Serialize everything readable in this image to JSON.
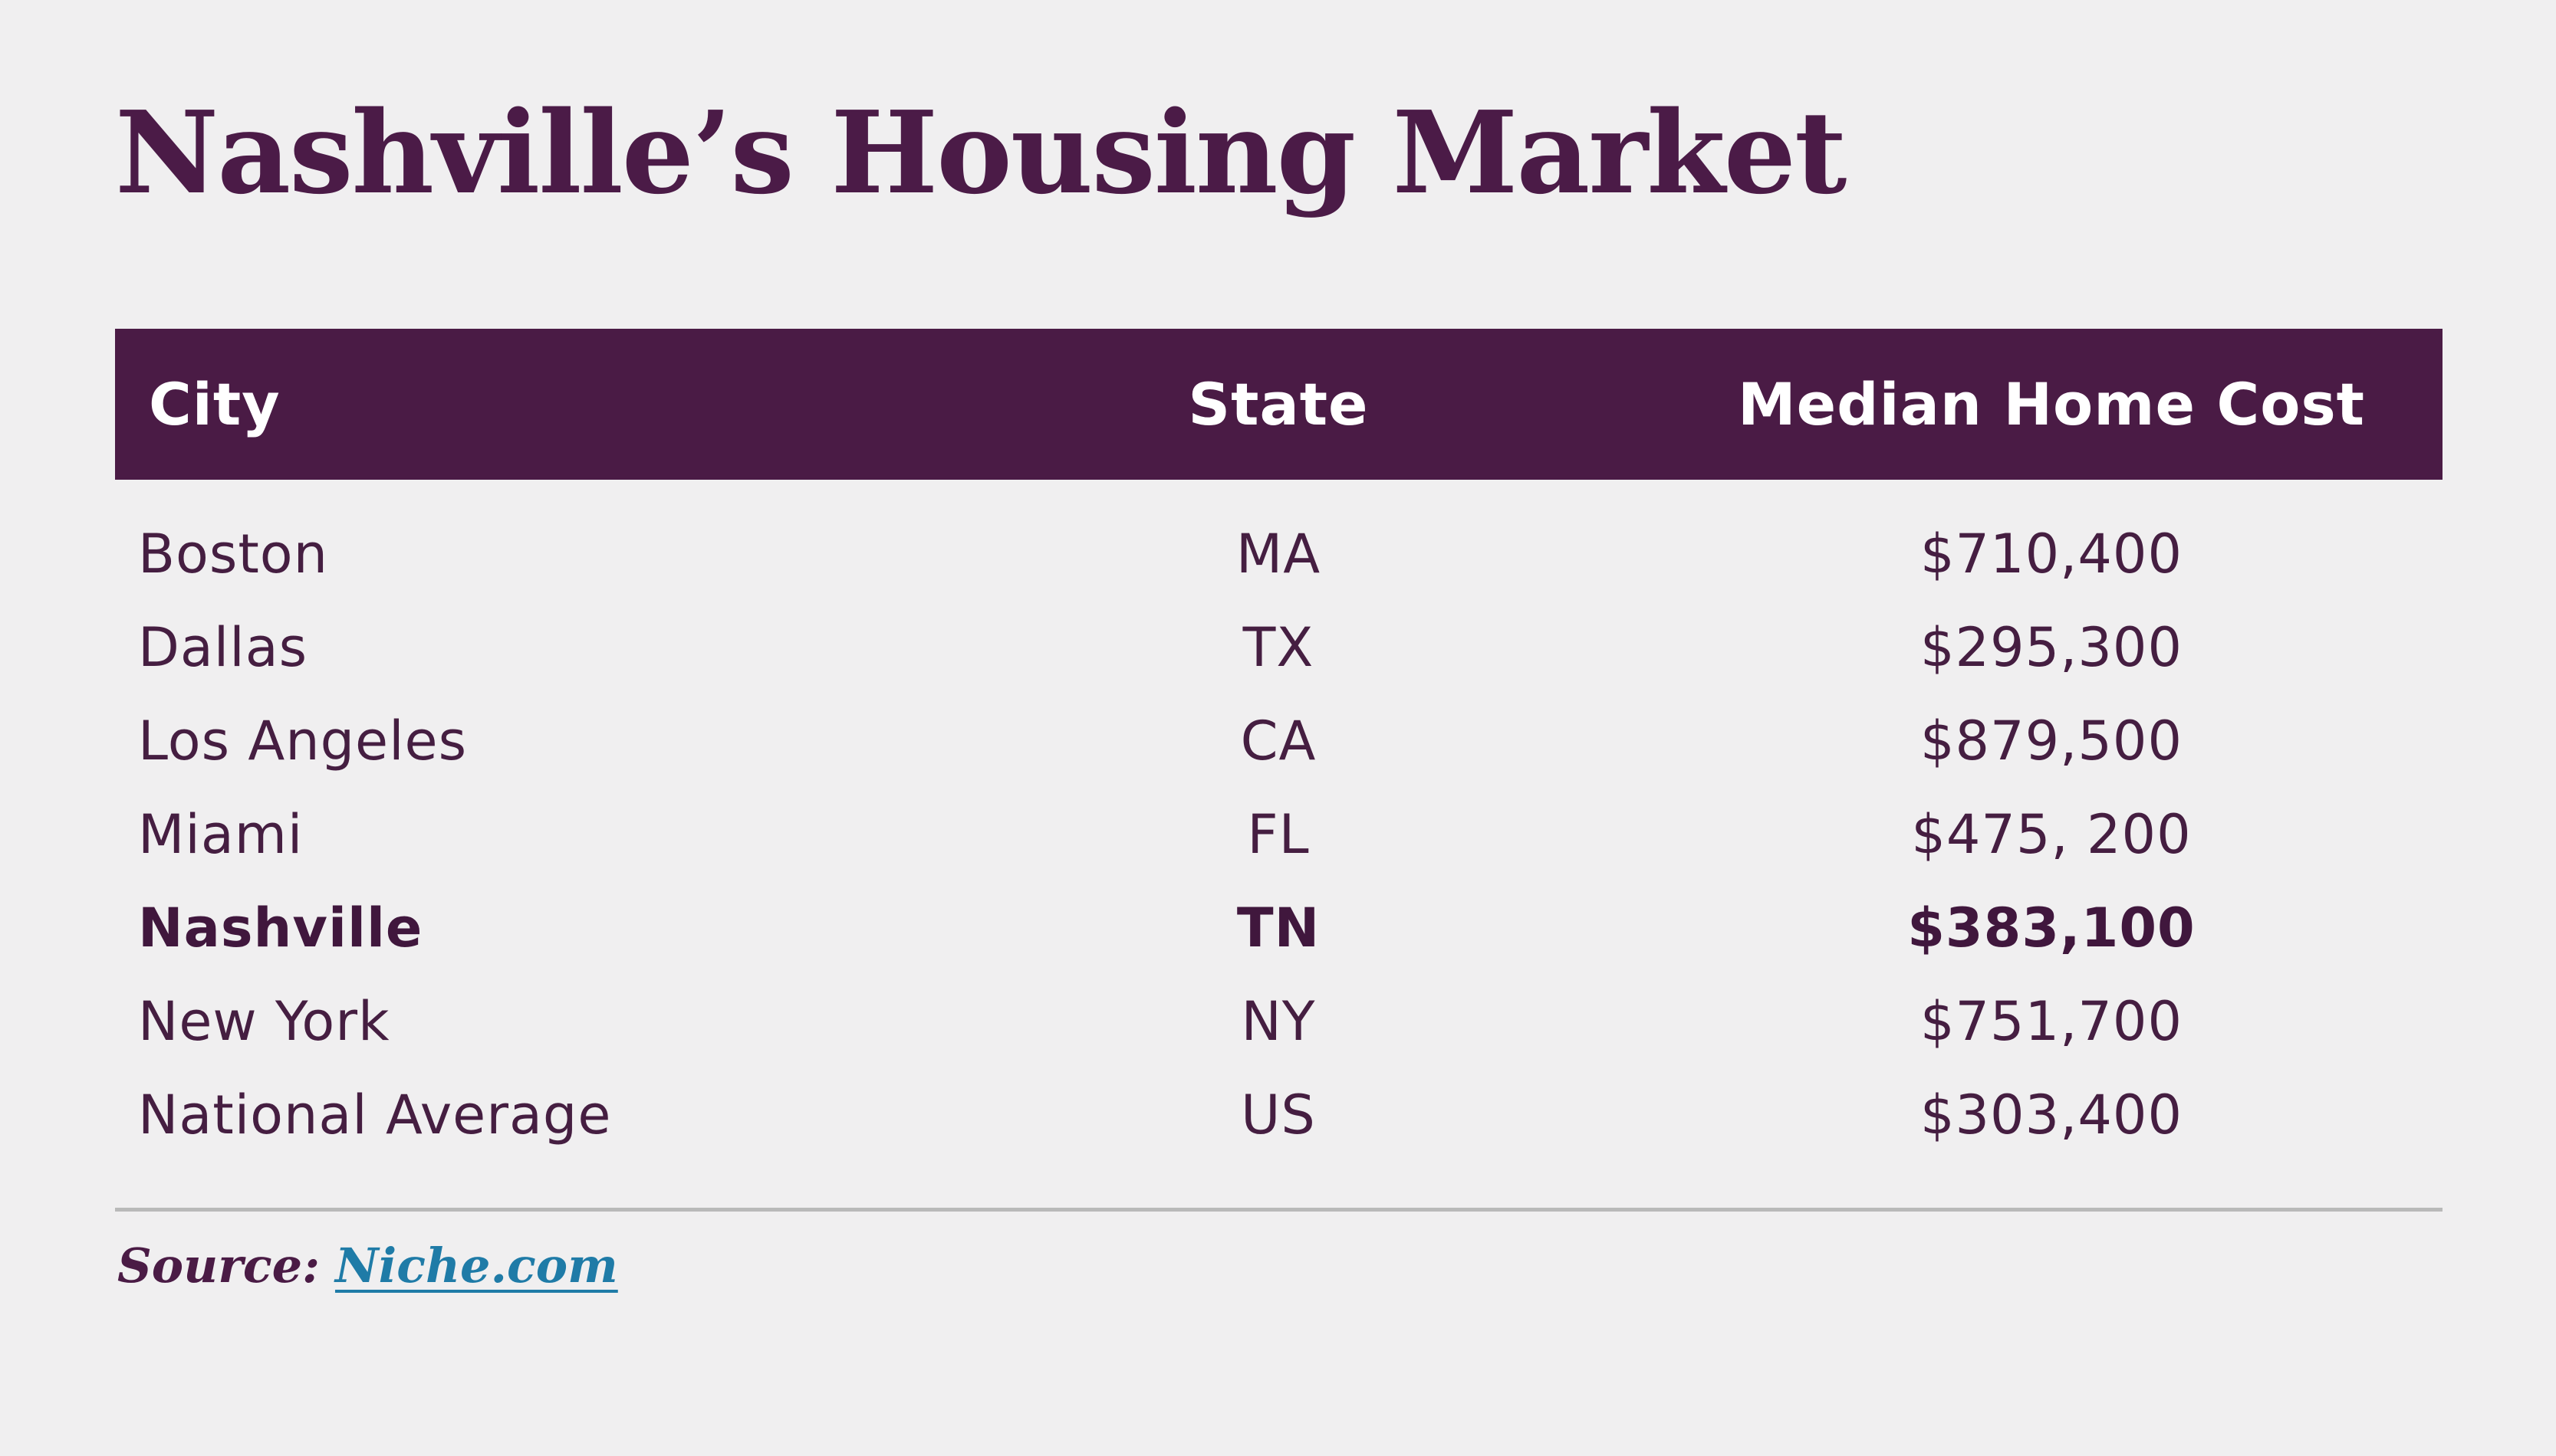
{
  "page": {
    "background": "#F0EFF0"
  },
  "chart_data": {
    "type": "table",
    "title": "Nashville’s Housing Market",
    "columns": [
      "City",
      "State",
      "Median Home Cost"
    ],
    "rows": [
      [
        "Boston",
        "MA",
        "$710,400"
      ],
      [
        "Dallas",
        "TX",
        "$295,300"
      ],
      [
        "Los Angeles",
        "CA",
        "$879,500"
      ],
      [
        "Miami",
        "FL",
        "$475, 200"
      ],
      [
        "Nashville",
        "TN",
        "$383,100"
      ],
      [
        "New York",
        "NY",
        "$751,700"
      ],
      [
        "National Average",
        "US",
        "$303,400"
      ]
    ],
    "values_numeric": [
      710400,
      295300,
      879500,
      475200,
      383100,
      751700,
      303400
    ],
    "highlight_row": "Nashville",
    "highlight_row_index": 4,
    "source": "Niche.com"
  },
  "source": {
    "label": "Source:",
    "link_text": "Niche.com"
  },
  "colors": {
    "background": "#F0EFF0",
    "header_bar": "#4A1B45",
    "title_text": "#4B1B47",
    "header_text": "#FFFFFF",
    "row_text": "#451E41",
    "highlight_row_text": "#40173D",
    "link": "#1F7BA7",
    "divider": "#B9B9B9"
  }
}
